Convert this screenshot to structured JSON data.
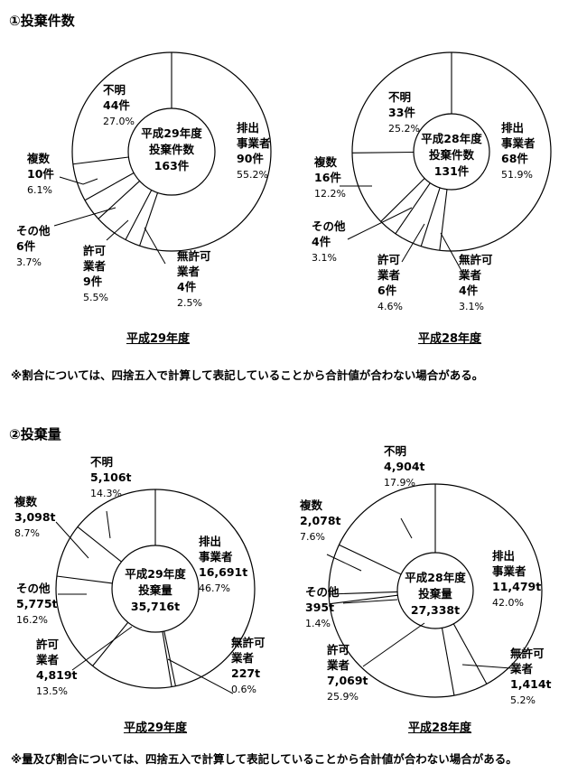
{
  "sections": [
    {
      "title": "①投棄件数",
      "note": "※割合については、四捨五入で計算して表記していることから合計値が合わない場合がある。"
    },
    {
      "title": "②投棄量",
      "note": "※量及び割合については、四捨五入で計算して表記していることから合計値が合わない場合がある。"
    }
  ],
  "chart_data": [
    {
      "type": "pie",
      "title": "平成29年度",
      "center_label": [
        "平成29年度",
        "投棄件数",
        "163件"
      ],
      "slices": [
        {
          "label": "排出事業者",
          "display": [
            "排出",
            "事業者"
          ],
          "amount": "90件",
          "percent": "55.2%",
          "value": 90
        },
        {
          "label": "無許可業者",
          "display": [
            "無許可",
            "業者"
          ],
          "amount": "4件",
          "percent": "2.5%",
          "value": 4
        },
        {
          "label": "許可業者",
          "display": [
            "許可",
            "業者"
          ],
          "amount": "9件",
          "percent": "5.5%",
          "value": 9
        },
        {
          "label": "その他",
          "display": [
            "その他"
          ],
          "amount": "6件",
          "percent": "3.7%",
          "value": 6
        },
        {
          "label": "複数",
          "display": [
            "複数"
          ],
          "amount": "10件",
          "percent": "6.1%",
          "value": 10
        },
        {
          "label": "不明",
          "display": [
            "不明"
          ],
          "amount": "44件",
          "percent": "27.0%",
          "value": 44
        }
      ]
    },
    {
      "type": "pie",
      "title": "平成28年度",
      "center_label": [
        "平成28年度",
        "投棄件数",
        "131件"
      ],
      "slices": [
        {
          "label": "排出事業者",
          "display": [
            "排出",
            "事業者"
          ],
          "amount": "68件",
          "percent": "51.9%",
          "value": 68
        },
        {
          "label": "無許可業者",
          "display": [
            "無許可",
            "業者"
          ],
          "amount": "4件",
          "percent": "3.1%",
          "value": 4
        },
        {
          "label": "許可業者",
          "display": [
            "許可",
            "業者"
          ],
          "amount": "6件",
          "percent": "4.6%",
          "value": 6
        },
        {
          "label": "その他",
          "display": [
            "その他"
          ],
          "amount": "4件",
          "percent": "3.1%",
          "value": 4
        },
        {
          "label": "複数",
          "display": [
            "複数"
          ],
          "amount": "16件",
          "percent": "12.2%",
          "value": 16
        },
        {
          "label": "不明",
          "display": [
            "不明"
          ],
          "amount": "33件",
          "percent": "25.2%",
          "value": 33
        }
      ]
    },
    {
      "type": "pie",
      "title": "平成29年度",
      "center_label": [
        "平成29年度",
        "投棄量",
        "35,716t"
      ],
      "slices": [
        {
          "label": "排出事業者",
          "display": [
            "排出",
            "事業者"
          ],
          "amount": "16,691t",
          "percent": "46.7%",
          "value": 16691
        },
        {
          "label": "無許可業者",
          "display": [
            "無許可",
            "業者"
          ],
          "amount": "227t",
          "percent": "0.6%",
          "value": 227
        },
        {
          "label": "許可業者",
          "display": [
            "許可",
            "業者"
          ],
          "amount": "4,819t",
          "percent": "13.5%",
          "value": 4819
        },
        {
          "label": "その他",
          "display": [
            "その他"
          ],
          "amount": "5,775t",
          "percent": "16.2%",
          "value": 5775
        },
        {
          "label": "複数",
          "display": [
            "複数"
          ],
          "amount": "3,098t",
          "percent": "8.7%",
          "value": 3098
        },
        {
          "label": "不明",
          "display": [
            "不明"
          ],
          "amount": "5,106t",
          "percent": "14.3%",
          "value": 5106
        }
      ]
    },
    {
      "type": "pie",
      "title": "平成28年度",
      "center_label": [
        "平成28年度",
        "投棄量",
        "27,338t"
      ],
      "slices": [
        {
          "label": "排出事業者",
          "display": [
            "排出",
            "事業者"
          ],
          "amount": "11,479t",
          "percent": "42.0%",
          "value": 11479
        },
        {
          "label": "無許可業者",
          "display": [
            "無許可",
            "業者"
          ],
          "amount": "1,414t",
          "percent": "5.2%",
          "value": 1414
        },
        {
          "label": "許可業者",
          "display": [
            "許可",
            "業者"
          ],
          "amount": "7,069t",
          "percent": "25.9%",
          "value": 7069
        },
        {
          "label": "その他",
          "display": [
            "その他"
          ],
          "amount": "395t",
          "percent": "1.4%",
          "value": 395
        },
        {
          "label": "複数",
          "display": [
            "複数"
          ],
          "amount": "2,078t",
          "percent": "7.6%",
          "value": 2078
        },
        {
          "label": "不明",
          "display": [
            "不明"
          ],
          "amount": "4,904t",
          "percent": "17.9%",
          "value": 4904
        }
      ]
    }
  ]
}
